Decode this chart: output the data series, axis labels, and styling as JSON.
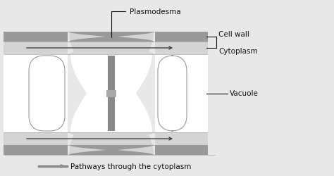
{
  "bg_color": "#e8e8e8",
  "outer_cw_color": "#999999",
  "inner_cw_color": "#bbbbbb",
  "cytoplasm_color": "#d4d4d4",
  "vacuole_color": "#ffffff",
  "plasmodesma_color": "#888888",
  "arrow_color": "#333333",
  "label_color": "#111111",
  "line_color": "#333333",
  "labels": {
    "plasmodesma": "Plasmodesma",
    "cell_wall": "Cell wall",
    "cytoplasm": "Cytoplasm",
    "vacuole": "Vacuole",
    "pathway": "Pathways through the cytoplasm"
  },
  "figure_bg": "#e8e8e8"
}
